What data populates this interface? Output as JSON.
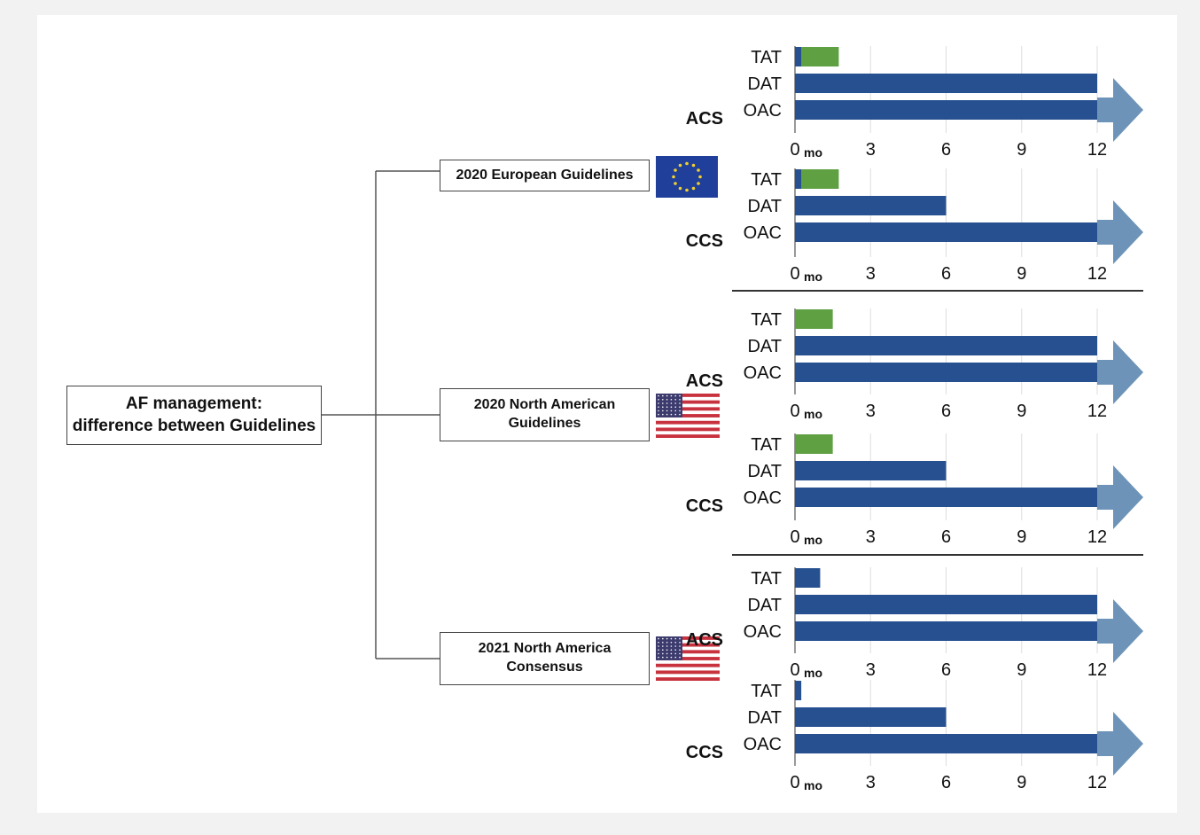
{
  "root": {
    "line1": "AF management:",
    "line2": "difference between Guidelines"
  },
  "guidelines": [
    {
      "line1": "2020 European Guidelines",
      "line2": "",
      "flag": "eu-flag-icon"
    },
    {
      "line1": "2020 North American",
      "line2": "Guidelines",
      "flag": "us-flag-icon"
    },
    {
      "line1": "2021 North America",
      "line2": "Consensus",
      "flag": "us-flag-icon"
    }
  ],
  "colors": {
    "tat_green": "#5fa043",
    "bar_blue": "#275090",
    "arrow_blue": "#6d94b8"
  },
  "chart_data": [
    {
      "type": "bar",
      "orientation": "horizontal",
      "group": "2020 European Guidelines",
      "label": "ACS",
      "categories": [
        "TAT",
        "DAT",
        "OAC"
      ],
      "values": [
        1,
        12,
        12
      ],
      "continues": [
        false,
        false,
        true
      ],
      "colors": [
        "tat",
        "blue",
        "blue"
      ],
      "ticks": [
        0,
        3,
        6,
        9,
        12
      ],
      "tick_unit": "mo",
      "xlim": [
        0,
        12
      ],
      "grid": true
    },
    {
      "type": "bar",
      "orientation": "horizontal",
      "group": "2020 European Guidelines",
      "label": "CCS",
      "categories": [
        "TAT",
        "DAT",
        "OAC"
      ],
      "values": [
        1,
        6,
        12
      ],
      "continues": [
        false,
        false,
        true
      ],
      "colors": [
        "tat",
        "blue",
        "blue"
      ],
      "ticks": [
        0,
        3,
        6,
        9,
        12
      ],
      "tick_unit": "mo",
      "xlim": [
        0,
        12
      ],
      "grid": true
    },
    {
      "type": "bar",
      "orientation": "horizontal",
      "group": "2020 North American Guidelines",
      "label": "ACS",
      "categories": [
        "TAT",
        "DAT",
        "OAC"
      ],
      "values": [
        1.5,
        12,
        12
      ],
      "continues": [
        false,
        false,
        true
      ],
      "colors": [
        "green",
        "blue",
        "blue"
      ],
      "ticks": [
        0,
        3,
        6,
        9,
        12
      ],
      "tick_unit": "mo",
      "xlim": [
        0,
        12
      ],
      "grid": true
    },
    {
      "type": "bar",
      "orientation": "horizontal",
      "group": "2020 North American Guidelines",
      "label": "CCS",
      "categories": [
        "TAT",
        "DAT",
        "OAC"
      ],
      "values": [
        1.5,
        6,
        12
      ],
      "continues": [
        false,
        false,
        true
      ],
      "colors": [
        "green",
        "blue",
        "blue"
      ],
      "ticks": [
        0,
        3,
        6,
        9,
        12
      ],
      "tick_unit": "mo",
      "xlim": [
        0,
        12
      ],
      "grid": true
    },
    {
      "type": "bar",
      "orientation": "horizontal",
      "group": "2021 North America Consensus",
      "label": "ACS",
      "categories": [
        "TAT",
        "DAT",
        "OAC"
      ],
      "values": [
        1,
        12,
        12
      ],
      "continues": [
        false,
        false,
        true
      ],
      "colors": [
        "blue",
        "blue",
        "blue"
      ],
      "ticks": [
        0,
        3,
        6,
        9,
        12
      ],
      "tick_unit": "mo",
      "xlim": [
        0,
        12
      ],
      "grid": true
    },
    {
      "type": "bar",
      "orientation": "horizontal",
      "group": "2021 North America Consensus",
      "label": "CCS",
      "categories": [
        "TAT",
        "DAT",
        "OAC"
      ],
      "values": [
        0.25,
        6,
        12
      ],
      "continues": [
        false,
        false,
        true
      ],
      "colors": [
        "blue",
        "blue",
        "blue"
      ],
      "ticks": [
        0,
        3,
        6,
        9,
        12
      ],
      "tick_unit": "mo",
      "xlim": [
        0,
        12
      ],
      "grid": true
    }
  ]
}
